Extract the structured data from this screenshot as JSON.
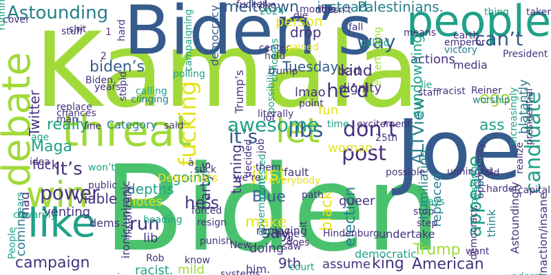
{
  "title": "",
  "palette": {
    "lime": "#a0da39",
    "green": "#4ac16d",
    "teal": "#1fa187",
    "teal2": "#277f8e",
    "blue": "#365c8d",
    "indigo": "#46327e",
    "purple": "#440154",
    "yellow": "#e4e419",
    "lightgreen": "#6ece58"
  },
  "words": [
    {
      "text": "Biden",
      "color": "green"
    },
    {
      "text": "Kamala",
      "color": "lime"
    },
    {
      "text": "Joe",
      "color": "blue"
    },
    {
      "text": "Biden’s",
      "color": "blue"
    },
    {
      "text": "threat",
      "color": "lime"
    },
    {
      "text": "people",
      "color": "teal"
    },
    {
      "text": "debate",
      "color": "lime"
    },
    {
      "text": "like",
      "color": "teal"
    },
    {
      "text": "win",
      "color": "lime"
    },
    {
      "text": "let",
      "color": "lime"
    },
    {
      "text": "Astounding",
      "color": "teal2"
    },
    {
      "text": "biden’s",
      "color": "blue"
    },
    {
      "text": "fucking",
      "color": "yellow"
    },
    {
      "text": "he’d",
      "color": "indigo"
    },
    {
      "text": "can’t",
      "color": "blue"
    },
    {
      "text": "candidate",
      "color": "teal"
    },
    {
      "text": "it’s",
      "color": "blue"
    },
    {
      "text": "just",
      "color": "yellow"
    },
    {
      "text": "libs",
      "color": "blue"
    },
    {
      "text": "post",
      "color": "indigo"
    },
    {
      "text": "don’t",
      "color": "indigo"
    },
    {
      "text": "awesome",
      "color": "teal"
    },
    {
      "text": "ALTView",
      "color": "teal2"
    },
    {
      "text": "election",
      "color": "teal2"
    },
    {
      "text": "appease",
      "color": "teal"
    },
    {
      "text": "Trump",
      "color": "lime"
    },
    {
      "text": "black",
      "color": "yellow"
    },
    {
      "text": "say",
      "color": "indigo"
    },
    {
      "text": "make",
      "color": "yellow"
    },
    {
      "text": "Blue",
      "color": "blue"
    },
    {
      "text": "run",
      "color": "indigo"
    },
    {
      "text": "campaign",
      "color": "indigo"
    },
    {
      "text": "power",
      "color": "indigo"
    },
    {
      "text": "party’s",
      "color": "indigo"
    },
    {
      "text": "he’s",
      "color": "indigo"
    },
    {
      "text": "going",
      "color": "teal"
    },
    {
      "text": "It’s",
      "color": "indigo"
    },
    {
      "text": "Maga",
      "color": "teal"
    },
    {
      "text": "fuck",
      "color": "indigo"
    },
    {
      "text": "ego",
      "color": "lime"
    },
    {
      "text": "kind",
      "color": "indigo"
    },
    {
      "text": "bad",
      "color": "indigo"
    },
    {
      "text": "way",
      "color": "blue"
    },
    {
      "text": "actions",
      "color": "indigo"
    },
    {
      "text": "meltdown",
      "color": "blue"
    },
    {
      "text": "instead",
      "color": "teal2"
    },
    {
      "text": "Palestinians.",
      "color": "teal2"
    },
    {
      "text": "person",
      "color": "yellow"
    },
    {
      "text": "drop",
      "color": "indigo"
    },
    {
      "text": "Tuesday",
      "color": "blue"
    },
    {
      "text": "dignity",
      "color": "indigo"
    },
    {
      "text": "lmao",
      "color": "indigo"
    },
    {
      "text": "fun",
      "color": "yellow"
    },
    {
      "text": "woman",
      "color": "yellow"
    },
    {
      "text": "queer",
      "color": "indigo"
    },
    {
      "text": "ass",
      "color": "teal"
    },
    {
      "text": "sundowning",
      "color": "teal"
    },
    {
      "text": "media",
      "color": "indigo"
    },
    {
      "text": "Twitter",
      "color": "indigo"
    },
    {
      "text": "Category",
      "color": "teal2"
    },
    {
      "text": "really",
      "color": "teal"
    },
    {
      "text": "democracy",
      "color": "blue"
    },
    {
      "text": "Trump’s",
      "color": "indigo"
    },
    {
      "text": "fault",
      "color": "indigo"
    },
    {
      "text": "king",
      "color": "indigo"
    },
    {
      "text": "American",
      "color": "indigo"
    },
    {
      "text": "democratic",
      "color": "teal"
    },
    {
      "text": "assume",
      "color": "indigo"
    },
    {
      "text": "9th",
      "color": "indigo"
    },
    {
      "text": "lib",
      "color": "indigo"
    },
    {
      "text": "turning",
      "color": "indigo"
    },
    {
      "text": "doing",
      "color": "indigo"
    },
    {
      "text": "replaced",
      "color": "teal2"
    },
    {
      "text": "undertake",
      "color": "indigo"
    },
    {
      "text": "think",
      "color": "teal2"
    },
    {
      "text": "humiliation",
      "color": "teal2"
    },
    {
      "text": "Astoundingly",
      "color": "indigo"
    },
    {
      "text": "inaction/insane",
      "color": "indigo"
    },
    {
      "text": "blatantly",
      "color": "teal2"
    },
    {
      "text": "venting",
      "color": "indigo"
    },
    {
      "text": "viable",
      "color": "indigo"
    },
    {
      "text": "depths",
      "color": "teal"
    },
    {
      "text": "notes",
      "color": "yellow"
    },
    {
      "text": "dems",
      "color": "indigo"
    },
    {
      "text": "coming",
      "color": "teal2"
    },
    {
      "text": "mad",
      "color": "indigo"
    },
    {
      "text": "mild",
      "color": "lime"
    },
    {
      "text": "racist.",
      "color": "teal"
    },
    {
      "text": "him.",
      "color": "indigo"
    },
    {
      "text": "ironic/unironic",
      "color": "indigo"
    },
    {
      "text": "Democrats",
      "color": "yellow"
    },
    {
      "text": "stupid",
      "color": "indigo"
    },
    {
      "text": "excitement",
      "color": "indigo"
    },
    {
      "text": "path",
      "color": "indigo"
    },
    {
      "text": "saw",
      "color": "indigo"
    },
    {
      "text": "hope",
      "color": "indigo"
    },
    {
      "text": "replacing",
      "color": "indigo"
    },
    {
      "text": "possible",
      "color": "indigo"
    },
    {
      "text": "shit",
      "color": "indigo"
    },
    {
      "text": "running",
      "color": "teal"
    },
    {
      "text": "2",
      "color": "indigo"
    },
    {
      "text": "clinging",
      "color": "teal2"
    },
    {
      "text": "calling",
      "color": "teal"
    },
    {
      "text": "fall",
      "color": "indigo"
    },
    {
      "text": "emperor",
      "color": "indigo"
    },
    {
      "text": "victory",
      "color": "teal2"
    },
    {
      "text": "racist",
      "color": "indigo"
    },
    {
      "text": "President",
      "color": "indigo"
    },
    {
      "text": "Reiner",
      "color": "indigo"
    },
    {
      "text": "worship",
      "color": "teal2"
    },
    {
      "text": "staff",
      "color": "indigo"
    },
    {
      "text": "earth",
      "color": "indigo"
    },
    {
      "text": "center",
      "color": "indigo"
    },
    {
      "text": "held",
      "color": "indigo"
    },
    {
      "text": "gained",
      "color": "yellow"
    },
    {
      "text": "called",
      "color": "teal"
    },
    {
      "text": "means",
      "color": "indigo"
    },
    {
      "text": "possibility",
      "color": "teal"
    },
    {
      "text": "concerns",
      "color": "teal"
    },
    {
      "text": "entertaining",
      "color": "lime"
    },
    {
      "text": "lie",
      "color": "teal"
    },
    {
      "text": "point",
      "color": "indigo"
    },
    {
      "text": "time",
      "color": "teal"
    },
    {
      "text": "25th",
      "color": "indigo"
    },
    {
      "text": "unhinged",
      "color": "indigo"
    },
    {
      "text": "opportunity.",
      "color": "indigo"
    },
    {
      "text": "increasingly",
      "color": "teal"
    },
    {
      "text": "presidential",
      "color": "indigo"
    },
    {
      "text": "realize",
      "color": "indigo"
    },
    {
      "text": "capitalism",
      "color": "indigo"
    },
    {
      "text": "harder",
      "color": "indigo"
    },
    {
      "text": "old",
      "color": "indigo"
    },
    {
      "text": "speaking",
      "color": "teal"
    },
    {
      "text": "understand",
      "color": "teal"
    },
    {
      "text": "democracy.",
      "color": "indigo"
    },
    {
      "text": "want",
      "color": "indigo"
    },
    {
      "text": "ways",
      "color": "teal"
    },
    {
      "text": "stop",
      "color": "indigo"
    },
    {
      "text": "step",
      "color": "indigo"
    },
    {
      "text": "Hindenburg",
      "color": "indigo"
    },
    {
      "text": "does",
      "color": "indigo"
    },
    {
      "text": "it",
      "color": "indigo"
    },
    {
      "text": "le",
      "color": "indigo"
    },
    {
      "text": "court",
      "color": "teal"
    },
    {
      "text": "systems",
      "color": "indigo"
    },
    {
      "text": "New",
      "color": "indigo"
    },
    {
      "text": "know",
      "color": "indigo"
    },
    {
      "text": "saying",
      "color": "indigo"
    },
    {
      "text": "Rob",
      "color": "indigo"
    },
    {
      "text": "historically",
      "color": "indigo"
    },
    {
      "text": "heading",
      "color": "teal"
    },
    {
      "text": "resign",
      "color": "indigo"
    },
    {
      "text": "punish",
      "color": "indigo"
    },
    {
      "text": "government",
      "color": "teal"
    },
    {
      "text": "protested",
      "color": "teal"
    },
    {
      "text": "decided",
      "color": "indigo"
    },
    {
      "text": "everybody",
      "color": "yellow"
    },
    {
      "text": "them.",
      "color": "indigo"
    },
    {
      "text": "we’re",
      "color": "indigo"
    },
    {
      "text": "suck",
      "color": "indigo"
    },
    {
      "text": "à",
      "color": "indigo"
    },
    {
      "text": "forced",
      "color": "indigo"
    },
    {
      "text": "public",
      "color": "indigo"
    },
    {
      "text": "won’t",
      "color": "teal"
    },
    {
      "text": "idea",
      "color": "indigo"
    },
    {
      "text": "cowardly",
      "color": "teal"
    },
    {
      "text": "years",
      "color": "teal"
    },
    {
      "text": "People",
      "color": "teal"
    },
    {
      "text": "age",
      "color": "teal"
    },
    {
      "text": "line",
      "color": "indigo"
    },
    {
      "text": "said",
      "color": "indigo"
    },
    {
      "text": "replace",
      "color": "indigo"
    },
    {
      "text": "chances",
      "color": "indigo"
    },
    {
      "text": "man.",
      "color": "indigo"
    },
    {
      "text": "Biden.",
      "color": "indigo"
    },
    {
      "text": "years.",
      "color": "indigo"
    },
    {
      "text": "polling",
      "color": "teal"
    },
    {
      "text": "hard",
      "color": "indigo"
    },
    {
      "text": "cover",
      "color": "indigo"
    },
    {
      "text": "stuff",
      "color": "indigo"
    },
    {
      "text": "like.",
      "color": "indigo"
    },
    {
      "text": "2024",
      "color": "teal"
    },
    {
      "text": "die",
      "color": "indigo"
    },
    {
      "text": "months",
      "color": "indigo"
    },
    {
      "text": "doesn’t",
      "color": "indigo"
    },
    {
      "text": "campaigning",
      "color": "teal"
    },
    {
      "text": "thing",
      "color": "teal"
    },
    {
      "text": "taken",
      "color": "indigo"
    },
    {
      "text": "fucker",
      "color": "indigo"
    },
    {
      "text": "literally",
      "color": "indigo"
    },
    {
      "text": "lot",
      "color": "indigo"
    },
    {
      "text": "trump",
      "color": "indigo"
    },
    {
      "text": "job",
      "color": "indigo"
    },
    {
      "text": "1",
      "color": "indigo"
    }
  ]
}
